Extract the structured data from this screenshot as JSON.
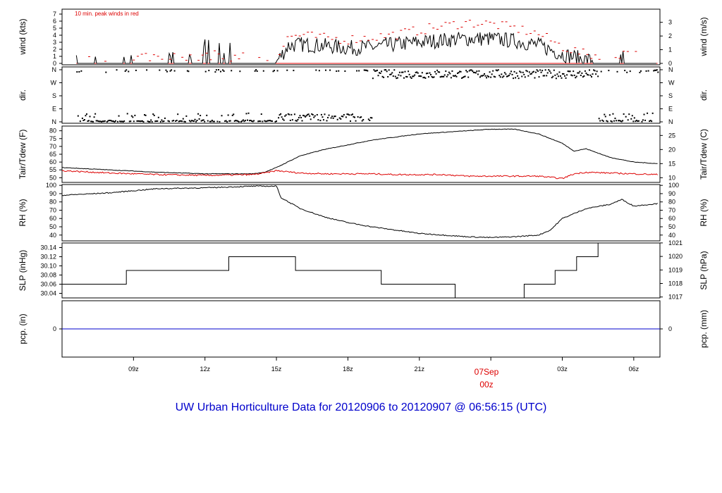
{
  "title": "UW Urban Horticulture Data for 20120906  to  20120907 @ 06:56:15  (UTC)",
  "x_axis": {
    "ticks": [
      "09z",
      "12z",
      "15z",
      "18z",
      "21z",
      "03z",
      "06z"
    ],
    "midnight_date": "07Sep",
    "midnight_hour": "00z"
  },
  "colors": {
    "primary": "#000000",
    "highlight": "#dd0000",
    "precip": "#0000cc",
    "title": "#0000cc"
  },
  "chart_data": [
    {
      "type": "line",
      "panel": "wind",
      "ylabel_left": "wind (kts)",
      "ylabel_right": "wind (m/s)",
      "annotation": "10 min. peak winds in red",
      "left_ticks": [
        "0",
        "1",
        "2",
        "3",
        "4",
        "5",
        "6",
        "7"
      ],
      "right_ticks": [
        "0",
        "1",
        "2",
        "3"
      ],
      "ylim": [
        0,
        7.3
      ],
      "x_hours": [
        7.0,
        8.0,
        9.0,
        10.0,
        11.0,
        12.0,
        13.0,
        14.0,
        15.0,
        15.5,
        16.0,
        17.0,
        18.0,
        19.0,
        20.0,
        21.0,
        22.0,
        23.0,
        24.0,
        25.0,
        26.0,
        27.0,
        28.0,
        29.0,
        30.0,
        31.0
      ],
      "series": [
        {
          "values": [
            0.3,
            0.3,
            0.5,
            0.4,
            0.4,
            0.9,
            0.8,
            0.5,
            0.2,
            2.5,
            2.7,
            2.5,
            2.2,
            2.3,
            2.7,
            3.0,
            3.3,
            3.5,
            3.5,
            3.2,
            2.6,
            1.3,
            0.5,
            0.6,
            0.6,
            0.3
          ]
        },
        {
          "values": [
            0.8,
            0.6,
            0.9,
            0.9,
            0.8,
            1.2,
            1.0,
            0.8,
            0.6,
            3.8,
            4.0,
            3.6,
            3.4,
            3.7,
            4.1,
            4.7,
            5.3,
            5.8,
            5.6,
            5.0,
            4.2,
            2.4,
            1.2,
            1.3,
            1.5,
            0.9
          ]
        }
      ]
    },
    {
      "type": "scatter",
      "panel": "dir",
      "ylabel_left": "dir.",
      "ylabel_right": "dir.",
      "left_ticks": [
        "N",
        "E",
        "S",
        "W",
        "N"
      ],
      "right_ticks": [
        "N",
        "E",
        "S",
        "W",
        "N"
      ],
      "series": [
        {
          "values": [
            0,
            0,
            10,
            20,
            0,
            30,
            0,
            15,
            0,
            40,
            60,
            50,
            40,
            30,
            350,
            340,
            330,
            320,
            310,
            300,
            320,
            330,
            340,
            20,
            30,
            0
          ]
        }
      ]
    },
    {
      "type": "line",
      "panel": "temperature",
      "ylabel_left": "Tair/Tdew (F)",
      "ylabel_right": "Tair/Tdew (C)",
      "left_ticks": [
        "50",
        "55",
        "60",
        "65",
        "70",
        "75",
        "80"
      ],
      "right_ticks": [
        "10",
        "15",
        "20",
        "25"
      ],
      "ylim": [
        47,
        83
      ],
      "x_hours": [
        6.0,
        8.0,
        10.0,
        12.0,
        14.0,
        14.5,
        15.0,
        16.0,
        17.0,
        18.0,
        19.0,
        20.0,
        21.0,
        22.0,
        23.0,
        24.0,
        25.0,
        26.0,
        27.0,
        27.5,
        28.0,
        29.0,
        30.0,
        31.0
      ],
      "series": [
        {
          "name": "Tair",
          "values": [
            56.5,
            55,
            53.5,
            52.5,
            52.5,
            53.5,
            56.5,
            64,
            68,
            71,
            74,
            76,
            78,
            79,
            80,
            81,
            81,
            78,
            72,
            67,
            68.5,
            63,
            60,
            59
          ]
        },
        {
          "name": "Tdew",
          "values": [
            54.5,
            53,
            52,
            51.5,
            52,
            53,
            54.5,
            53,
            52.5,
            52.5,
            52.5,
            52,
            52,
            52,
            51,
            51,
            51,
            51,
            49.5,
            52.5,
            53.5,
            53,
            52.5,
            52
          ]
        }
      ]
    },
    {
      "type": "line",
      "panel": "RH",
      "ylabel_left": "RH (%)",
      "ylabel_right": "RH (%)",
      "left_ticks": [
        "40",
        "50",
        "60",
        "70",
        "80",
        "90",
        "100"
      ],
      "right_ticks": [
        "40",
        "50",
        "60",
        "70",
        "80",
        "90",
        "100"
      ],
      "ylim": [
        33,
        101
      ],
      "x_hours": [
        6.0,
        8.0,
        10.0,
        12.0,
        14.0,
        15.0,
        15.2,
        16.0,
        17.0,
        18.0,
        19.0,
        20.0,
        21.0,
        22.0,
        23.0,
        24.0,
        25.0,
        26.0,
        26.5,
        27.0,
        28.0,
        29.0,
        29.5,
        30.0,
        31.0
      ],
      "series": [
        {
          "values": [
            88,
            91,
            96,
            97,
            99,
            99,
            85,
            72,
            62,
            55,
            50,
            46,
            42,
            40,
            38,
            37,
            38,
            40,
            46,
            60,
            72,
            77,
            83,
            75,
            78
          ]
        }
      ]
    },
    {
      "type": "line",
      "panel": "SLP",
      "ylabel_left": "SLP (inHg)",
      "ylabel_right": "SLP (hPa)",
      "left_ticks": [
        "30.04",
        "30.06",
        "30.08",
        "30.10",
        "30.12",
        "30.14"
      ],
      "right_ticks": [
        "1017",
        "1018",
        "1019",
        "1020",
        "1021"
      ],
      "ylim": [
        30.03,
        30.15
      ],
      "step_hours": [
        6.0,
        8.7,
        13.0,
        15.8,
        19.4,
        22.5,
        25.4,
        26.7,
        27.6,
        28.5
      ],
      "step_values": [
        30.06,
        30.09,
        30.12,
        30.09,
        30.06,
        30.03,
        30.06,
        30.09,
        30.12,
        30.15
      ]
    },
    {
      "type": "line",
      "panel": "precip",
      "ylabel_left": "pcp. (in)",
      "ylabel_right": "pcp. (mm)",
      "left_ticks": [
        "0"
      ],
      "right_ticks": [
        "0"
      ],
      "series": [
        {
          "values": [
            0,
            0
          ]
        }
      ]
    }
  ]
}
